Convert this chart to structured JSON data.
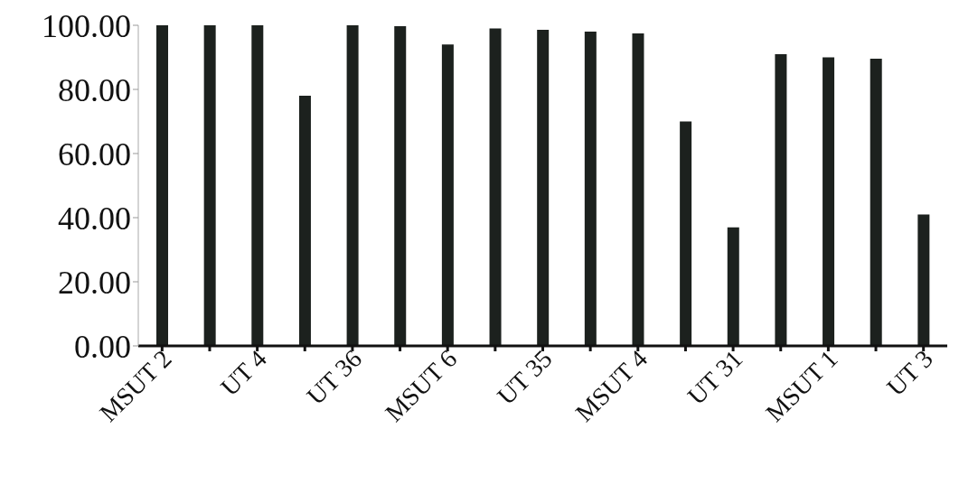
{
  "chart_data": {
    "type": "bar",
    "categories": [
      "MSUT 2",
      null,
      "UT 4",
      null,
      "UT 36",
      null,
      "MSUT 6",
      null,
      "UT 35",
      null,
      "MSUT 4",
      null,
      "UT 31",
      null,
      "MSUT 1",
      null,
      "UT 3"
    ],
    "values": [
      100,
      100,
      100,
      78,
      100,
      99.7,
      94,
      99,
      98.6,
      98,
      97.5,
      70,
      37,
      91,
      90,
      89.6,
      41
    ],
    "color": "#1c211e",
    "ylim": [
      0,
      100
    ],
    "yticks": [
      {
        "value": 0,
        "label": "0.00"
      },
      {
        "value": 20,
        "label": "20.00"
      },
      {
        "value": 40,
        "label": "40.00"
      },
      {
        "value": 60,
        "label": "60.00"
      },
      {
        "value": 80,
        "label": "80.00"
      },
      {
        "value": 100,
        "label": "100.00"
      }
    ],
    "grid": false,
    "legend": false
  }
}
